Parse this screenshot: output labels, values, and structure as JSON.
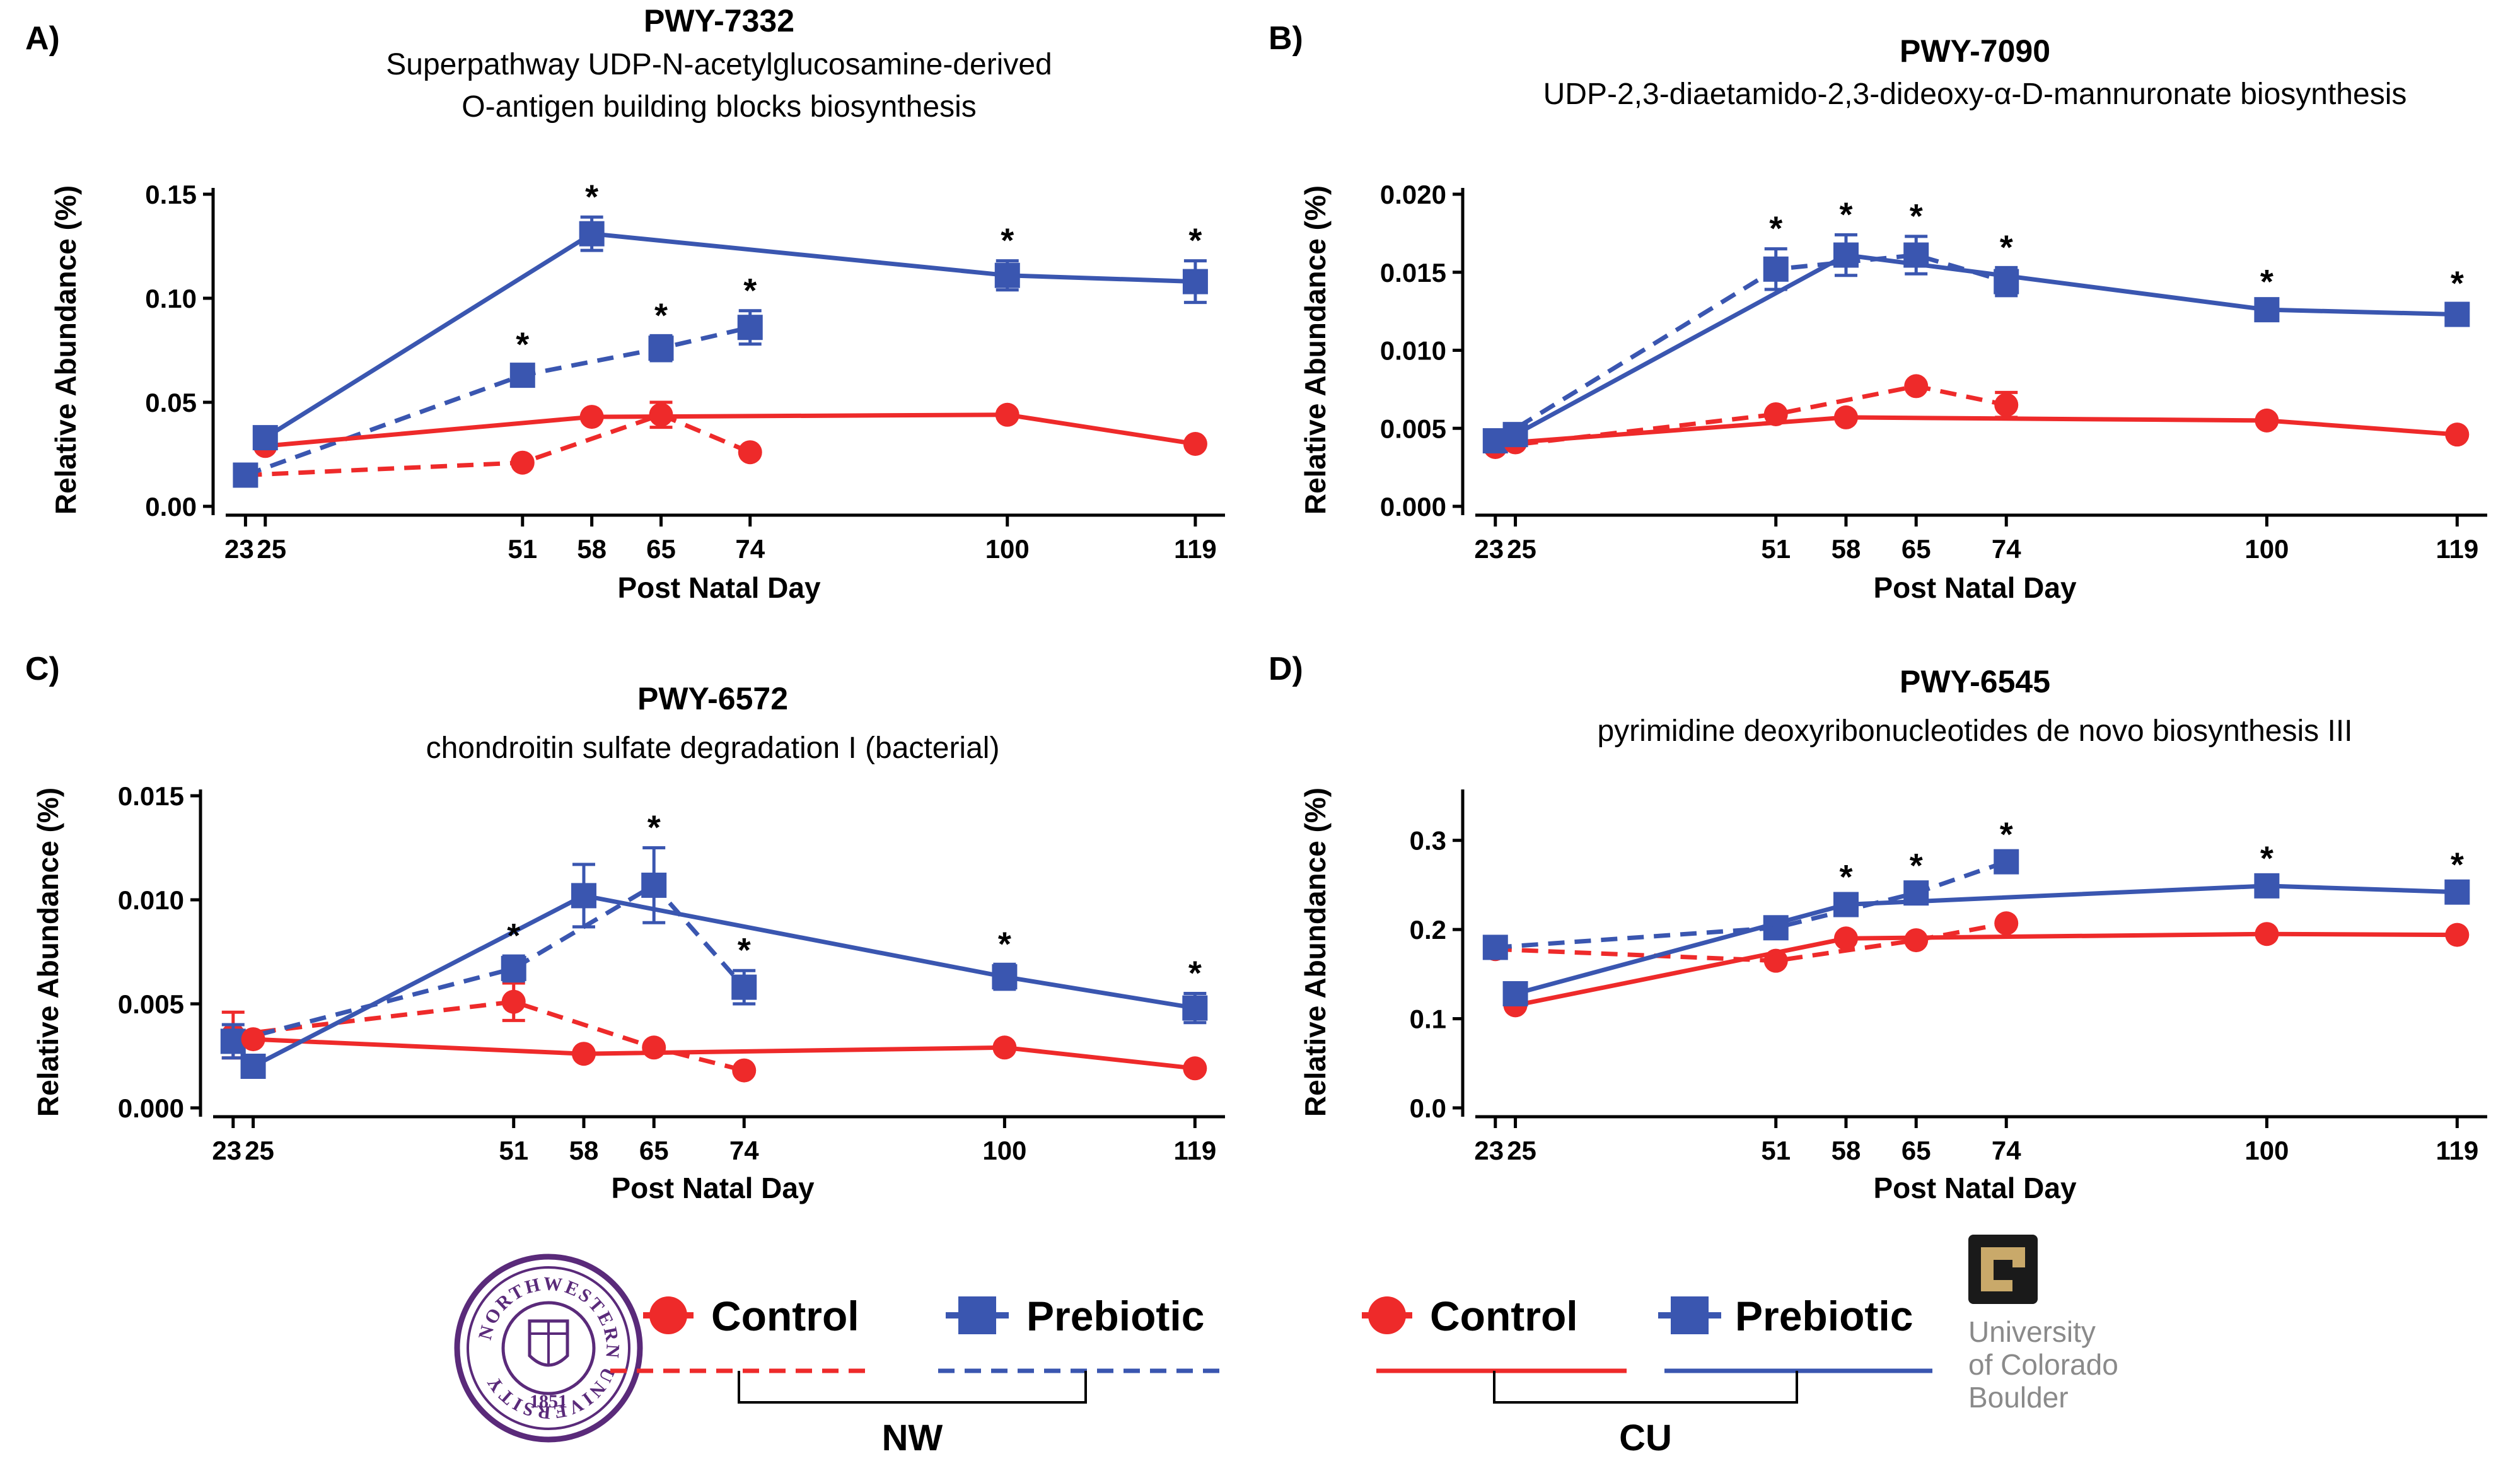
{
  "colors": {
    "control": "#ee2a2a",
    "prebiotic": "#3a56b0",
    "seal": "#5a2a7a",
    "cu_gold": "#c9a96a",
    "cu_gray": "#8a8a8a"
  },
  "chart_data": [
    {
      "panel": "A)",
      "type": "line",
      "title": "PWY-7332",
      "subtitle_lines": [
        "Superpathway UDP-N-acetylglucosamine-derived",
        "O-antigen building blocks biosynthesis"
      ],
      "xlabel": "Post Natal Day",
      "ylabel": "Relative Abundance (%)",
      "xticks": [
        23,
        25,
        51,
        58,
        65,
        74,
        100,
        119
      ],
      "xlim": [
        21,
        122
      ],
      "yticks": [
        "0.00",
        "0.05",
        "0.10",
        "0.15"
      ],
      "ylim": [
        0,
        0.15
      ],
      "series": [
        {
          "name": "NW Control",
          "group": "NW",
          "color": "#ee2a2a",
          "style": "dashed",
          "marker": "circle",
          "x": [
            23,
            51,
            65,
            74
          ],
          "y": [
            0.015,
            0.021,
            0.044,
            0.026
          ],
          "err": [
            0,
            0,
            0.006,
            0
          ]
        },
        {
          "name": "NW Prebiotic",
          "group": "NW",
          "color": "#3a56b0",
          "style": "dashed",
          "marker": "square",
          "x": [
            23,
            51,
            65,
            74
          ],
          "y": [
            0.015,
            0.063,
            0.076,
            0.086
          ],
          "err": [
            0,
            0.005,
            0.006,
            0.008
          ]
        },
        {
          "name": "CU Control",
          "group": "CU",
          "color": "#ee2a2a",
          "style": "solid",
          "marker": "circle",
          "x": [
            25,
            58,
            100,
            119
          ],
          "y": [
            0.029,
            0.043,
            0.044,
            0.03
          ],
          "err": [
            0,
            0,
            0,
            0
          ]
        },
        {
          "name": "CU Prebiotic",
          "group": "CU",
          "color": "#3a56b0",
          "style": "solid",
          "marker": "square",
          "x": [
            25,
            58,
            100,
            119
          ],
          "y": [
            0.033,
            0.131,
            0.111,
            0.108
          ],
          "err": [
            0,
            0.008,
            0.007,
            0.01
          ]
        }
      ],
      "annotations": [
        {
          "x": 51,
          "y": 0.063,
          "text": "*"
        },
        {
          "x": 58,
          "y": 0.131,
          "text": "*"
        },
        {
          "x": 65,
          "y": 0.076,
          "text": "*"
        },
        {
          "x": 74,
          "y": 0.086,
          "text": "*"
        },
        {
          "x": 100,
          "y": 0.111,
          "text": "*"
        },
        {
          "x": 119,
          "y": 0.108,
          "text": "*"
        }
      ]
    },
    {
      "panel": "B)",
      "type": "line",
      "title": "PWY-7090",
      "subtitle_lines": [
        "UDP-2,3-diaetamido-2,3-dideoxy-α-D-mannuronate biosynthesis"
      ],
      "xlabel": "Post Natal Day",
      "ylabel": "Relative Abundance (%)",
      "xticks": [
        23,
        25,
        51,
        58,
        65,
        74,
        100,
        119
      ],
      "xlim": [
        21,
        122
      ],
      "yticks": [
        "0.000",
        "0.005",
        "0.010",
        "0.015",
        "0.020"
      ],
      "ylim": [
        0,
        0.02
      ],
      "series": [
        {
          "name": "NW Control",
          "group": "NW",
          "color": "#ee2a2a",
          "style": "dashed",
          "marker": "circle",
          "x": [
            23,
            51,
            65,
            74
          ],
          "y": [
            0.0038,
            0.0059,
            0.0077,
            0.0065
          ],
          "err": [
            0,
            0,
            0,
            0.0008
          ]
        },
        {
          "name": "NW Prebiotic",
          "group": "NW",
          "color": "#3a56b0",
          "style": "dashed",
          "marker": "square",
          "x": [
            23,
            51,
            65,
            74
          ],
          "y": [
            0.0042,
            0.0152,
            0.0161,
            0.0144
          ],
          "err": [
            0,
            0.0013,
            0.0012,
            0.0009
          ]
        },
        {
          "name": "CU Control",
          "group": "CU",
          "color": "#ee2a2a",
          "style": "solid",
          "marker": "circle",
          "x": [
            25,
            58,
            100,
            119
          ],
          "y": [
            0.0041,
            0.0057,
            0.0055,
            0.0046
          ],
          "err": [
            0,
            0,
            0,
            0
          ]
        },
        {
          "name": "CU Prebiotic",
          "group": "CU",
          "color": "#3a56b0",
          "style": "solid",
          "marker": "square",
          "x": [
            25,
            58,
            100,
            119
          ],
          "y": [
            0.0046,
            0.0161,
            0.0126,
            0.0123
          ],
          "err": [
            0,
            0.0013,
            0.0005,
            0.0007
          ]
        }
      ],
      "annotations": [
        {
          "x": 51,
          "y": 0.0152,
          "text": "*"
        },
        {
          "x": 58,
          "y": 0.0161,
          "text": "*"
        },
        {
          "x": 65,
          "y": 0.0161,
          "text": "*"
        },
        {
          "x": 74,
          "y": 0.0144,
          "text": "*"
        },
        {
          "x": 100,
          "y": 0.0126,
          "text": "*"
        },
        {
          "x": 119,
          "y": 0.0123,
          "text": "*"
        }
      ]
    },
    {
      "panel": "C)",
      "type": "line",
      "title": "PWY-6572",
      "subtitle_lines": [
        "chondroitin sulfate degradation I (bacterial)"
      ],
      "xlabel": "Post Natal Day",
      "ylabel": "Relative Abundance (%)",
      "xticks": [
        23,
        25,
        51,
        58,
        65,
        74,
        100,
        119
      ],
      "xlim": [
        21,
        122
      ],
      "yticks": [
        "0.000",
        "0.005",
        "0.010",
        "0.015"
      ],
      "ylim": [
        0,
        0.015
      ],
      "series": [
        {
          "name": "NW Control",
          "group": "NW",
          "color": "#ee2a2a",
          "style": "dashed",
          "marker": "circle",
          "x": [
            23,
            51,
            65,
            74
          ],
          "y": [
            0.0035,
            0.0051,
            0.0029,
            0.0018
          ],
          "err": [
            0.0011,
            0.0009,
            0,
            0
          ]
        },
        {
          "name": "NW Prebiotic",
          "group": "NW",
          "color": "#3a56b0",
          "style": "dashed",
          "marker": "square",
          "x": [
            23,
            51,
            65,
            74
          ],
          "y": [
            0.0032,
            0.0067,
            0.0107,
            0.0058
          ],
          "err": [
            0.0008,
            0.0006,
            0.0018,
            0.0008
          ]
        },
        {
          "name": "CU Control",
          "group": "CU",
          "color": "#ee2a2a",
          "style": "solid",
          "marker": "circle",
          "x": [
            25,
            58,
            100,
            119
          ],
          "y": [
            0.0033,
            0.0026,
            0.0029,
            0.0019
          ],
          "err": [
            0,
            0,
            0,
            0
          ]
        },
        {
          "name": "CU Prebiotic",
          "group": "CU",
          "color": "#3a56b0",
          "style": "solid",
          "marker": "square",
          "x": [
            25,
            58,
            100,
            119
          ],
          "y": [
            0.002,
            0.0102,
            0.0063,
            0.0048
          ],
          "err": [
            0,
            0.0015,
            0.0006,
            0.0007
          ]
        }
      ],
      "annotations": [
        {
          "x": 51,
          "y": 0.0067,
          "text": "*"
        },
        {
          "x": 65,
          "y": 0.0107,
          "text": "*"
        },
        {
          "x": 74,
          "y": 0.0058,
          "text": "*"
        },
        {
          "x": 100,
          "y": 0.0063,
          "text": "*"
        },
        {
          "x": 119,
          "y": 0.0048,
          "text": "*"
        }
      ]
    },
    {
      "panel": "D)",
      "type": "line",
      "title": "PWY-6545",
      "subtitle_lines": [
        "pyrimidine deoxyribonucleotides de novo biosynthesis III"
      ],
      "xlabel": "Post Natal Day",
      "ylabel": "Relative Abundance (%)",
      "xticks": [
        23,
        25,
        51,
        58,
        65,
        74,
        100,
        119
      ],
      "xlim": [
        21,
        122
      ],
      "yticks": [
        "0.0",
        "0.1",
        "0.2",
        "0.3"
      ],
      "ylim": [
        0,
        0.35
      ],
      "series": [
        {
          "name": "NW Control",
          "group": "NW",
          "color": "#ee2a2a",
          "style": "dashed",
          "marker": "circle",
          "x": [
            23,
            51,
            65,
            74
          ],
          "y": [
            0.178,
            0.165,
            0.188,
            0.207
          ],
          "err": [
            0,
            0,
            0,
            0
          ]
        },
        {
          "name": "NW Prebiotic",
          "group": "NW",
          "color": "#3a56b0",
          "style": "dashed",
          "marker": "square",
          "x": [
            23,
            51,
            65,
            74
          ],
          "y": [
            0.18,
            0.202,
            0.241,
            0.276
          ],
          "err": [
            0,
            0,
            0.008,
            0.008
          ]
        },
        {
          "name": "CU Control",
          "group": "CU",
          "color": "#ee2a2a",
          "style": "solid",
          "marker": "circle",
          "x": [
            25,
            58,
            100,
            119
          ],
          "y": [
            0.115,
            0.19,
            0.195,
            0.194
          ],
          "err": [
            0,
            0,
            0,
            0
          ]
        },
        {
          "name": "CU Prebiotic",
          "group": "CU",
          "color": "#3a56b0",
          "style": "solid",
          "marker": "square",
          "x": [
            25,
            58,
            100,
            119
          ],
          "y": [
            0.128,
            0.228,
            0.249,
            0.242
          ],
          "err": [
            0,
            0.008,
            0.008,
            0.008
          ]
        }
      ],
      "annotations": [
        {
          "x": 58,
          "y": 0.228,
          "text": "*"
        },
        {
          "x": 65,
          "y": 0.241,
          "text": "*"
        },
        {
          "x": 74,
          "y": 0.276,
          "text": "*"
        },
        {
          "x": 100,
          "y": 0.249,
          "text": "*"
        },
        {
          "x": 119,
          "y": 0.242,
          "text": "*"
        }
      ]
    }
  ],
  "legend": {
    "nw": {
      "control_label": "Control",
      "prebiotic_label": "Prebiotic",
      "group_label": "NW",
      "line_style": "dashed"
    },
    "cu": {
      "control_label": "Control",
      "prebiotic_label": "Prebiotic",
      "group_label": "CU",
      "line_style": "solid"
    }
  },
  "logos": {
    "northwestern": {
      "ring_text": "NORTHWESTERN UNIVERSITY",
      "year": "1851"
    },
    "colorado": {
      "name_lines": [
        "University",
        "of Colorado",
        "Boulder"
      ]
    }
  }
}
